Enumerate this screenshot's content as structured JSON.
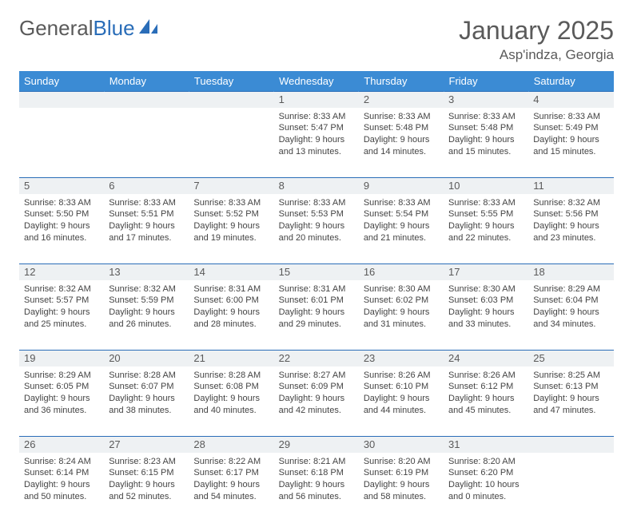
{
  "brand": {
    "part1": "General",
    "part2": "Blue"
  },
  "title": "January 2025",
  "location": "Asp'indza, Georgia",
  "colors": {
    "header_bg": "#3b8bd4",
    "header_text": "#ffffff",
    "daynum_bg": "#eef1f3",
    "border": "#2a6db8",
    "brand_gray": "#5a5a5a",
    "brand_blue": "#2a6db8"
  },
  "daysOfWeek": [
    "Sunday",
    "Monday",
    "Tuesday",
    "Wednesday",
    "Thursday",
    "Friday",
    "Saturday"
  ],
  "weeks": [
    [
      null,
      null,
      null,
      {
        "n": "1",
        "sr": "8:33 AM",
        "ss": "5:47 PM",
        "dh": "9",
        "dm": "13"
      },
      {
        "n": "2",
        "sr": "8:33 AM",
        "ss": "5:48 PM",
        "dh": "9",
        "dm": "14"
      },
      {
        "n": "3",
        "sr": "8:33 AM",
        "ss": "5:48 PM",
        "dh": "9",
        "dm": "15"
      },
      {
        "n": "4",
        "sr": "8:33 AM",
        "ss": "5:49 PM",
        "dh": "9",
        "dm": "15"
      }
    ],
    [
      {
        "n": "5",
        "sr": "8:33 AM",
        "ss": "5:50 PM",
        "dh": "9",
        "dm": "16"
      },
      {
        "n": "6",
        "sr": "8:33 AM",
        "ss": "5:51 PM",
        "dh": "9",
        "dm": "17"
      },
      {
        "n": "7",
        "sr": "8:33 AM",
        "ss": "5:52 PM",
        "dh": "9",
        "dm": "19"
      },
      {
        "n": "8",
        "sr": "8:33 AM",
        "ss": "5:53 PM",
        "dh": "9",
        "dm": "20"
      },
      {
        "n": "9",
        "sr": "8:33 AM",
        "ss": "5:54 PM",
        "dh": "9",
        "dm": "21"
      },
      {
        "n": "10",
        "sr": "8:33 AM",
        "ss": "5:55 PM",
        "dh": "9",
        "dm": "22"
      },
      {
        "n": "11",
        "sr": "8:32 AM",
        "ss": "5:56 PM",
        "dh": "9",
        "dm": "23"
      }
    ],
    [
      {
        "n": "12",
        "sr": "8:32 AM",
        "ss": "5:57 PM",
        "dh": "9",
        "dm": "25"
      },
      {
        "n": "13",
        "sr": "8:32 AM",
        "ss": "5:59 PM",
        "dh": "9",
        "dm": "26"
      },
      {
        "n": "14",
        "sr": "8:31 AM",
        "ss": "6:00 PM",
        "dh": "9",
        "dm": "28"
      },
      {
        "n": "15",
        "sr": "8:31 AM",
        "ss": "6:01 PM",
        "dh": "9",
        "dm": "29"
      },
      {
        "n": "16",
        "sr": "8:30 AM",
        "ss": "6:02 PM",
        "dh": "9",
        "dm": "31"
      },
      {
        "n": "17",
        "sr": "8:30 AM",
        "ss": "6:03 PM",
        "dh": "9",
        "dm": "33"
      },
      {
        "n": "18",
        "sr": "8:29 AM",
        "ss": "6:04 PM",
        "dh": "9",
        "dm": "34"
      }
    ],
    [
      {
        "n": "19",
        "sr": "8:29 AM",
        "ss": "6:05 PM",
        "dh": "9",
        "dm": "36"
      },
      {
        "n": "20",
        "sr": "8:28 AM",
        "ss": "6:07 PM",
        "dh": "9",
        "dm": "38"
      },
      {
        "n": "21",
        "sr": "8:28 AM",
        "ss": "6:08 PM",
        "dh": "9",
        "dm": "40"
      },
      {
        "n": "22",
        "sr": "8:27 AM",
        "ss": "6:09 PM",
        "dh": "9",
        "dm": "42"
      },
      {
        "n": "23",
        "sr": "8:26 AM",
        "ss": "6:10 PM",
        "dh": "9",
        "dm": "44"
      },
      {
        "n": "24",
        "sr": "8:26 AM",
        "ss": "6:12 PM",
        "dh": "9",
        "dm": "45"
      },
      {
        "n": "25",
        "sr": "8:25 AM",
        "ss": "6:13 PM",
        "dh": "9",
        "dm": "47"
      }
    ],
    [
      {
        "n": "26",
        "sr": "8:24 AM",
        "ss": "6:14 PM",
        "dh": "9",
        "dm": "50"
      },
      {
        "n": "27",
        "sr": "8:23 AM",
        "ss": "6:15 PM",
        "dh": "9",
        "dm": "52"
      },
      {
        "n": "28",
        "sr": "8:22 AM",
        "ss": "6:17 PM",
        "dh": "9",
        "dm": "54"
      },
      {
        "n": "29",
        "sr": "8:21 AM",
        "ss": "6:18 PM",
        "dh": "9",
        "dm": "56"
      },
      {
        "n": "30",
        "sr": "8:20 AM",
        "ss": "6:19 PM",
        "dh": "9",
        "dm": "58"
      },
      {
        "n": "31",
        "sr": "8:20 AM",
        "ss": "6:20 PM",
        "dh": "10",
        "dm": "0"
      },
      null
    ]
  ]
}
